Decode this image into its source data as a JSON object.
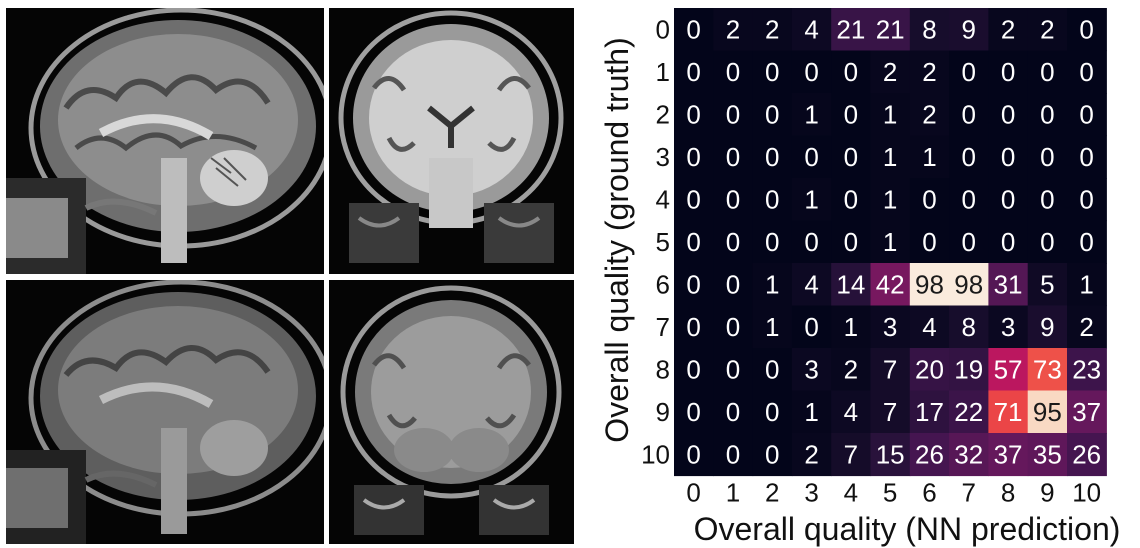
{
  "chart_data": {
    "type": "heatmap",
    "xlabel": "Overall quality (NN prediction)",
    "ylabel": "Overall quality (ground truth)",
    "x_categories": [
      "0",
      "1",
      "2",
      "3",
      "4",
      "5",
      "6",
      "7",
      "8",
      "9",
      "10"
    ],
    "y_categories": [
      "0",
      "1",
      "2",
      "3",
      "4",
      "5",
      "6",
      "7",
      "8",
      "9",
      "10"
    ],
    "values": [
      [
        0,
        2,
        2,
        4,
        21,
        21,
        8,
        9,
        2,
        2,
        0
      ],
      [
        0,
        0,
        0,
        0,
        0,
        2,
        2,
        0,
        0,
        0,
        0
      ],
      [
        0,
        0,
        0,
        1,
        0,
        1,
        2,
        0,
        0,
        0,
        0
      ],
      [
        0,
        0,
        0,
        0,
        0,
        1,
        1,
        0,
        0,
        0,
        0
      ],
      [
        0,
        0,
        0,
        1,
        0,
        1,
        0,
        0,
        0,
        0,
        0
      ],
      [
        0,
        0,
        0,
        0,
        0,
        1,
        0,
        0,
        0,
        0,
        0
      ],
      [
        0,
        0,
        1,
        4,
        14,
        42,
        98,
        98,
        31,
        5,
        1
      ],
      [
        0,
        0,
        1,
        0,
        1,
        3,
        4,
        8,
        3,
        9,
        2
      ],
      [
        0,
        0,
        0,
        3,
        2,
        7,
        20,
        19,
        57,
        73,
        23
      ],
      [
        0,
        0,
        0,
        1,
        4,
        7,
        17,
        22,
        71,
        95,
        37
      ],
      [
        0,
        0,
        0,
        2,
        7,
        15,
        26,
        32,
        37,
        35,
        26
      ]
    ],
    "colormap": "rocket",
    "vmin": 0,
    "vmax": 98
  },
  "images": {
    "top_left": "mri-sagittal-1-icon",
    "top_right": "mri-coronal-1-icon",
    "bottom_left": "mri-sagittal-2-icon",
    "bottom_right": "mri-coronal-2-icon"
  }
}
